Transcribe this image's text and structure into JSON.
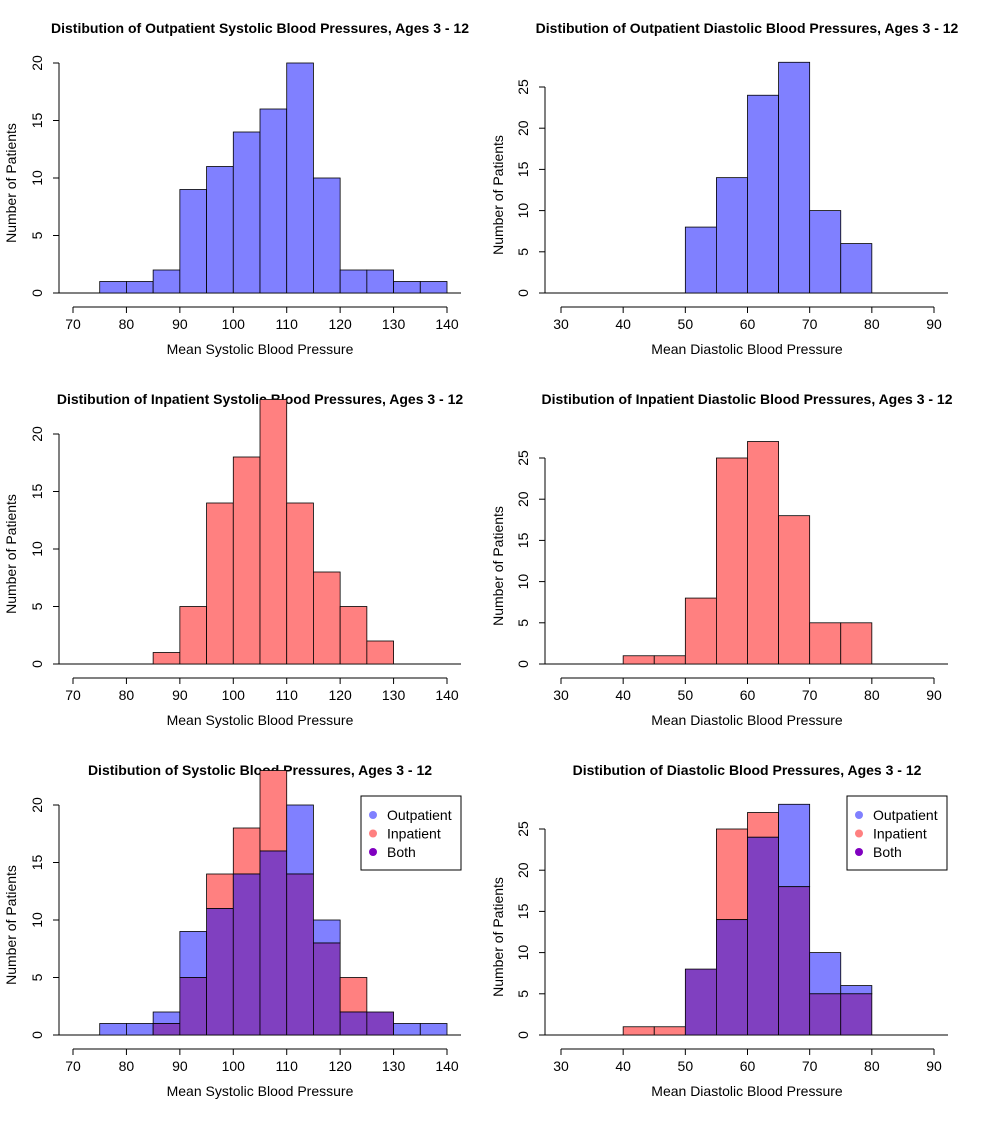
{
  "chart_data": [
    {
      "type": "bar",
      "title": "Distibution of Outpatient Systolic Blood Pressures, Ages 3 - 12",
      "xlabel": "Mean Systolic Blood Pressure",
      "ylabel": "Number of Patients",
      "xlim": [
        70,
        140
      ],
      "ylim": [
        0,
        20
      ],
      "xticks": [
        "70",
        "80",
        "90",
        "100",
        "110",
        "120",
        "130",
        "140"
      ],
      "yticks": [
        "0",
        "5",
        "10",
        "15",
        "20"
      ],
      "bin_width": 5,
      "series": [
        {
          "bins_start": [
            75,
            80,
            85,
            90,
            95,
            100,
            105,
            110,
            115,
            120,
            125,
            130,
            135
          ],
          "values": [
            1,
            1,
            2,
            9,
            11,
            14,
            16,
            20,
            10,
            2,
            2,
            1,
            1
          ],
          "color": "#8080ff"
        }
      ]
    },
    {
      "type": "bar",
      "title": "Distibution of Outpatient Diastolic Blood Pressures, Ages 3 - 12",
      "xlabel": "Mean Diastolic Blood Pressure",
      "ylabel": "Number of Patients",
      "xlim": [
        30,
        90
      ],
      "ylim": [
        0,
        25
      ],
      "xticks": [
        "30",
        "40",
        "50",
        "60",
        "70",
        "80",
        "90"
      ],
      "yticks": [
        "0",
        "5",
        "10",
        "15",
        "20",
        "25"
      ],
      "bin_width": 5,
      "series": [
        {
          "bins_start": [
            50,
            55,
            60,
            65,
            70,
            75
          ],
          "values": [
            8,
            14,
            24,
            28,
            10,
            6
          ],
          "color": "#8080ff"
        }
      ]
    },
    {
      "type": "bar",
      "title": "Distibution of Inpatient Systolic Blood Pressures, Ages 3 - 12",
      "xlabel": "Mean Systolic Blood Pressure",
      "ylabel": "Number of Patients",
      "xlim": [
        70,
        140
      ],
      "ylim": [
        0,
        20
      ],
      "xticks": [
        "70",
        "80",
        "90",
        "100",
        "110",
        "120",
        "130",
        "140"
      ],
      "yticks": [
        "0",
        "5",
        "10",
        "15",
        "20"
      ],
      "bin_width": 5,
      "series": [
        {
          "bins_start": [
            85,
            90,
            95,
            100,
            105,
            110,
            115,
            120,
            125
          ],
          "values": [
            1,
            5,
            14,
            18,
            23,
            14,
            8,
            5,
            2
          ],
          "color": "#ff8080"
        }
      ]
    },
    {
      "type": "bar",
      "title": "Distibution of Inpatient Diastolic Blood Pressures, Ages 3 - 12",
      "xlabel": "Mean Diastolic Blood Pressure",
      "ylabel": "Number of Patients",
      "xlim": [
        30,
        90
      ],
      "ylim": [
        0,
        25
      ],
      "xticks": [
        "30",
        "40",
        "50",
        "60",
        "70",
        "80",
        "90"
      ],
      "yticks": [
        "0",
        "5",
        "10",
        "15",
        "20",
        "25"
      ],
      "bin_width": 5,
      "series": [
        {
          "bins_start": [
            40,
            45,
            50,
            55,
            60,
            65,
            70,
            75
          ],
          "values": [
            1,
            1,
            8,
            25,
            27,
            18,
            5,
            5
          ],
          "color": "#ff8080"
        }
      ]
    },
    {
      "type": "bar",
      "title": "Distibution of Systolic Blood Pressures, Ages 3 - 12",
      "xlabel": "Mean Systolic Blood Pressure",
      "ylabel": "Number of Patients",
      "xlim": [
        70,
        140
      ],
      "ylim": [
        0,
        20
      ],
      "xticks": [
        "70",
        "80",
        "90",
        "100",
        "110",
        "120",
        "130",
        "140"
      ],
      "yticks": [
        "0",
        "5",
        "10",
        "15",
        "20"
      ],
      "bin_width": 5,
      "legend": {
        "position": "top-right",
        "entries": [
          {
            "label": "Outpatient",
            "color": "#8080ff"
          },
          {
            "label": "Inpatient",
            "color": "#ff8080"
          },
          {
            "label": "Both",
            "color": "#8000c0"
          }
        ]
      },
      "series": [
        {
          "name": "Outpatient",
          "bins_start": [
            75,
            80,
            85,
            90,
            95,
            100,
            105,
            110,
            115,
            120,
            125,
            130,
            135
          ],
          "values": [
            1,
            1,
            2,
            9,
            11,
            14,
            16,
            20,
            10,
            2,
            2,
            1,
            1
          ],
          "color": "#8080ff"
        },
        {
          "name": "Inpatient",
          "bins_start": [
            85,
            90,
            95,
            100,
            105,
            110,
            115,
            120,
            125
          ],
          "values": [
            1,
            5,
            14,
            18,
            23,
            14,
            8,
            5,
            2
          ],
          "color": "#ff8080"
        }
      ],
      "overlap_color": "#8040c0"
    },
    {
      "type": "bar",
      "title": "Distibution of Diastolic Blood Pressures, Ages 3 - 12",
      "xlabel": "Mean Diastolic Blood Pressure",
      "ylabel": "Number of Patients",
      "xlim": [
        30,
        90
      ],
      "ylim": [
        0,
        25
      ],
      "xticks": [
        "30",
        "40",
        "50",
        "60",
        "70",
        "80",
        "90"
      ],
      "yticks": [
        "0",
        "5",
        "10",
        "15",
        "20",
        "25"
      ],
      "bin_width": 5,
      "legend": {
        "position": "top-right",
        "entries": [
          {
            "label": "Outpatient",
            "color": "#8080ff"
          },
          {
            "label": "Inpatient",
            "color": "#ff8080"
          },
          {
            "label": "Both",
            "color": "#8000c0"
          }
        ]
      },
      "series": [
        {
          "name": "Outpatient",
          "bins_start": [
            50,
            55,
            60,
            65,
            70,
            75
          ],
          "values": [
            8,
            14,
            24,
            28,
            10,
            6
          ],
          "color": "#8080ff"
        },
        {
          "name": "Inpatient",
          "bins_start": [
            40,
            45,
            50,
            55,
            60,
            65,
            70,
            75
          ],
          "values": [
            1,
            1,
            8,
            25,
            27,
            18,
            5,
            5
          ],
          "color": "#ff8080"
        }
      ],
      "overlap_color": "#8040c0"
    }
  ]
}
